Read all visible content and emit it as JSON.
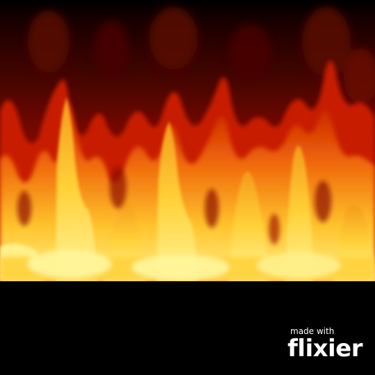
{
  "scene": {
    "subject": "fire-flames",
    "colors": {
      "background": "#000000",
      "smoke_dark": "#2a0000",
      "deep_red": "#8b0a00",
      "red": "#c81e00",
      "orange": "#f06a0a",
      "yellow": "#ffd23a",
      "bright_yellow": "#fff59a"
    }
  },
  "watermark": {
    "line1": "made with",
    "line2": "flixier",
    "color": "#ffffff"
  }
}
